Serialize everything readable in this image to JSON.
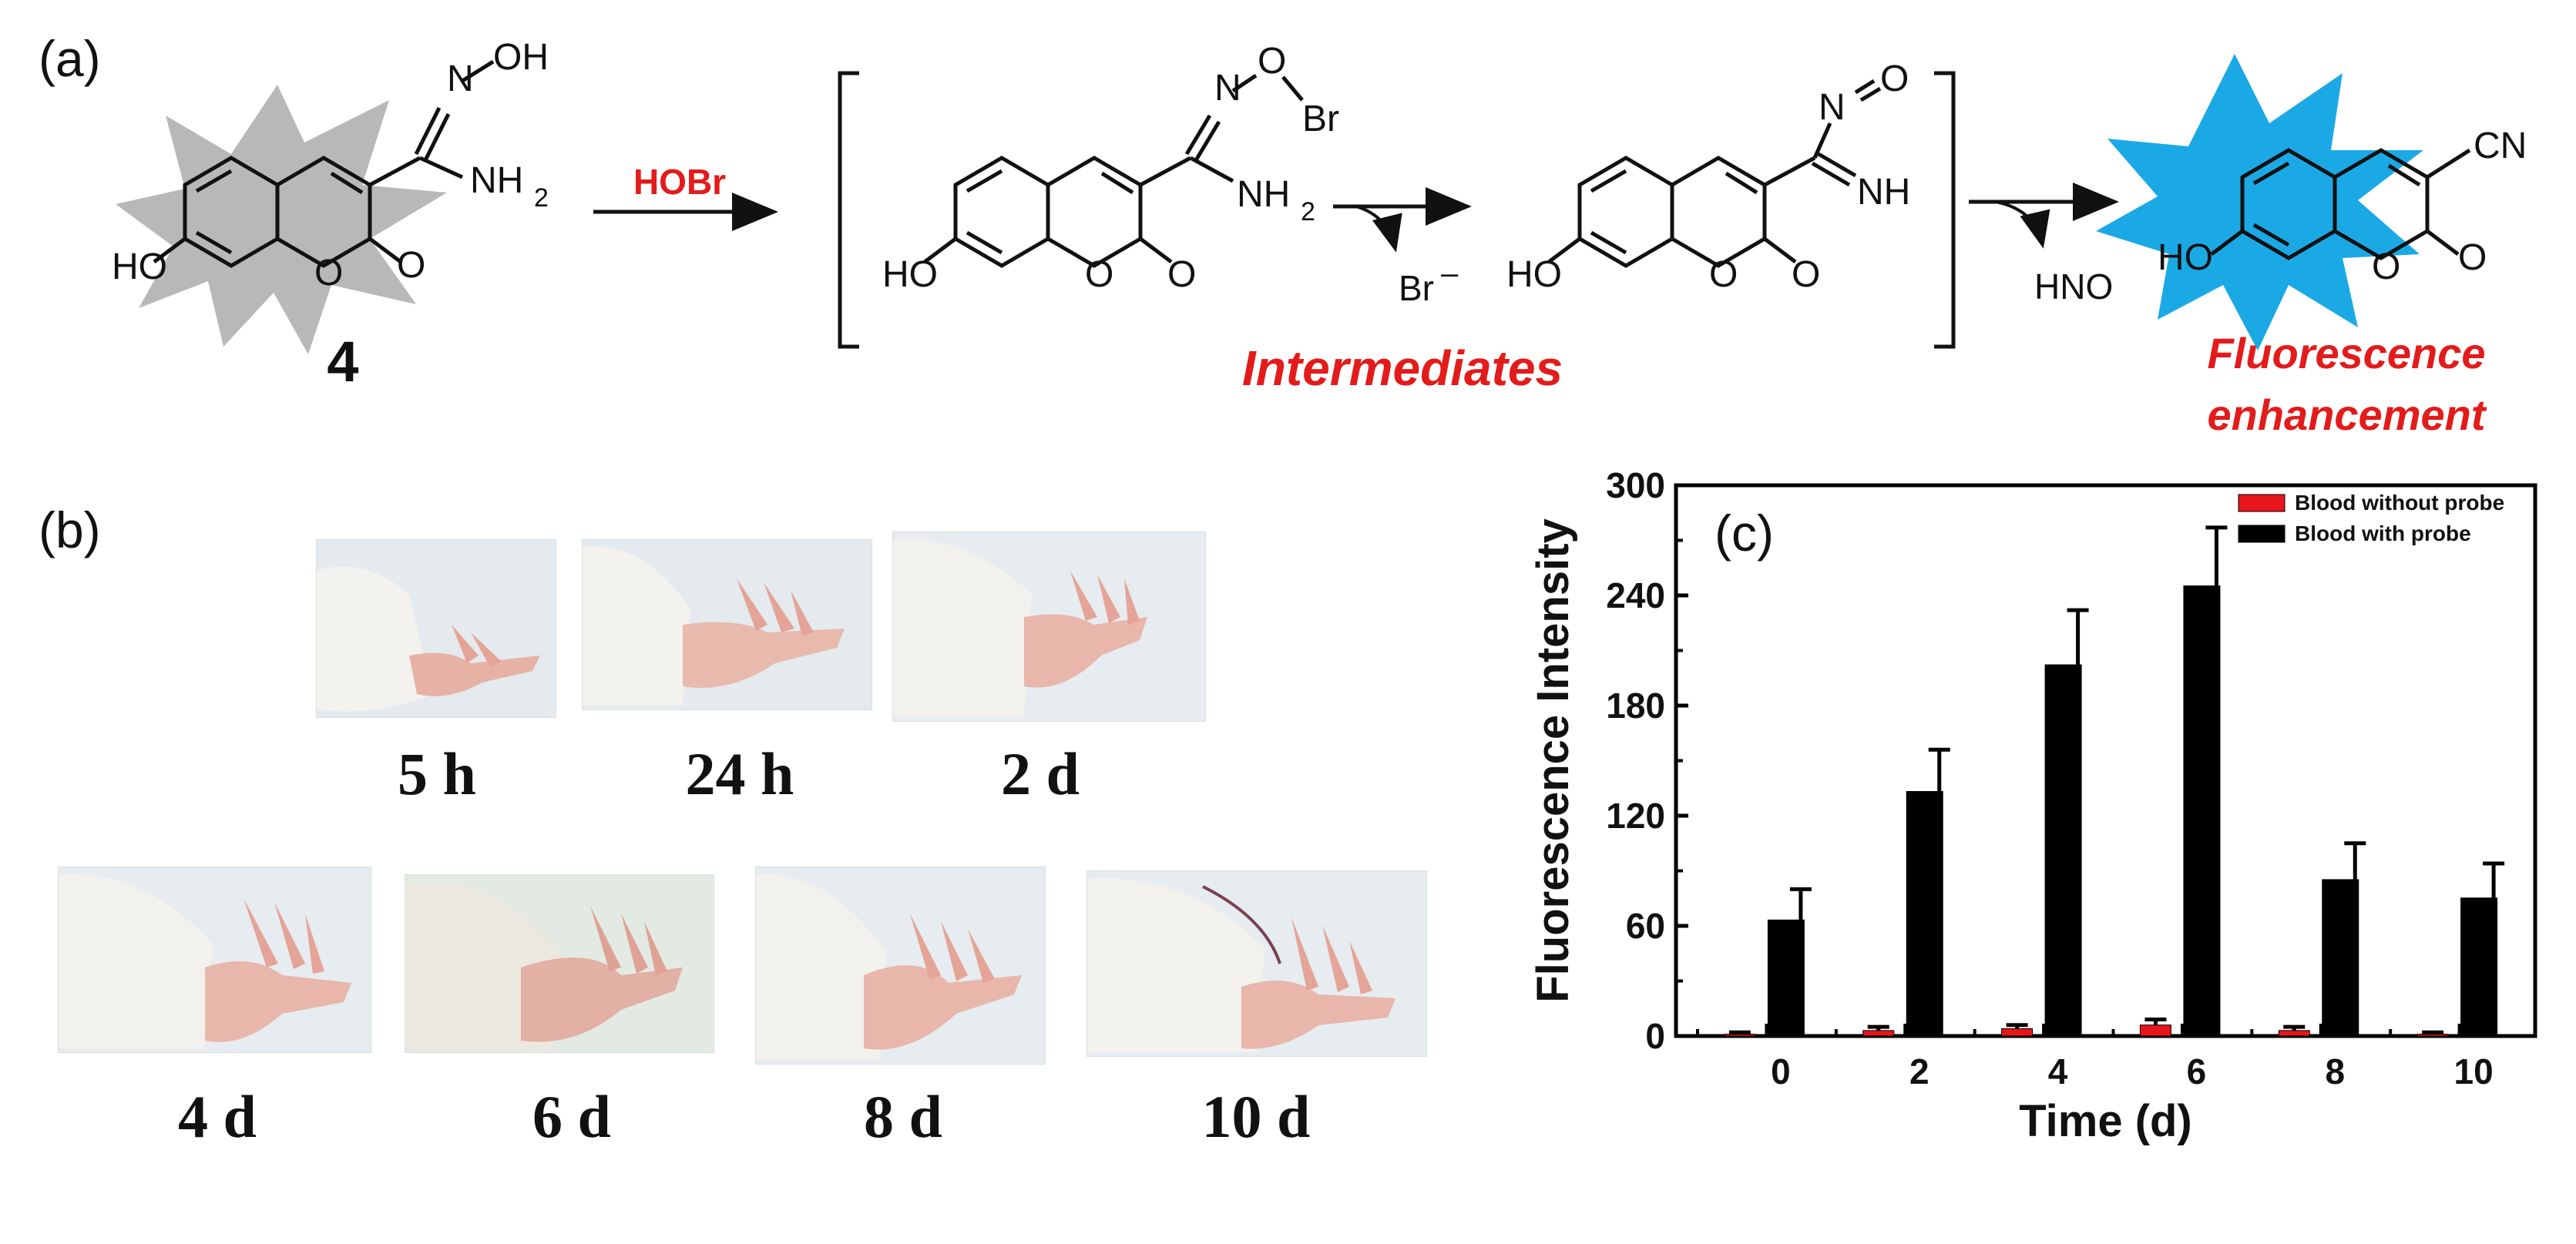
{
  "panels": {
    "a": "(a)",
    "b": "(b)",
    "c": "(c)"
  },
  "scheme": {
    "compound_number": "4",
    "reagent": "HOBr",
    "byproduct_br": "Br",
    "byproduct_hno": "HNO",
    "intermediates_label": "Intermediates",
    "product_label_line1": "Fluorescence",
    "product_label_line2": "enhancement",
    "groups": {
      "oh": "OH",
      "ho": "HO",
      "nh2": "NH",
      "nh2_sub": "2",
      "n": "N",
      "o": "O",
      "br": "Br",
      "nh": "NH",
      "cn": "CN",
      "eq_o": "O"
    }
  },
  "photos": {
    "time_labels": [
      "5 h",
      "24 h",
      "2 d",
      "4 d",
      "6 d",
      "8 d",
      "10 d"
    ]
  },
  "colors": {
    "accent_red": "#e31b1b",
    "blue_burst": "#1ba9e6",
    "gray_burst": "#b8b8b8",
    "bar_black": "#000000",
    "bar_red": "#e8161b"
  },
  "chart_data": {
    "type": "bar",
    "panel_label": "(c)",
    "categories": [
      "0",
      "2",
      "4",
      "6",
      "8",
      "10"
    ],
    "xlabel": "Time (d)",
    "ylabel": "Fluorescence Intensity",
    "ylim": [
      0,
      300
    ],
    "yticks": [
      "0",
      "60",
      "120",
      "180",
      "240",
      "300"
    ],
    "legend_placement": "top-right",
    "series": [
      {
        "name": "Blood without probe",
        "color": "#e8161b",
        "values": [
          1,
          3,
          4,
          6,
          3,
          1
        ],
        "errors": [
          1,
          2,
          2,
          3,
          2,
          1
        ]
      },
      {
        "name": "Blood with probe",
        "color": "#000000",
        "values": [
          63,
          133,
          202,
          245,
          85,
          75
        ],
        "errors": [
          17,
          23,
          30,
          32,
          20,
          19
        ]
      }
    ]
  }
}
